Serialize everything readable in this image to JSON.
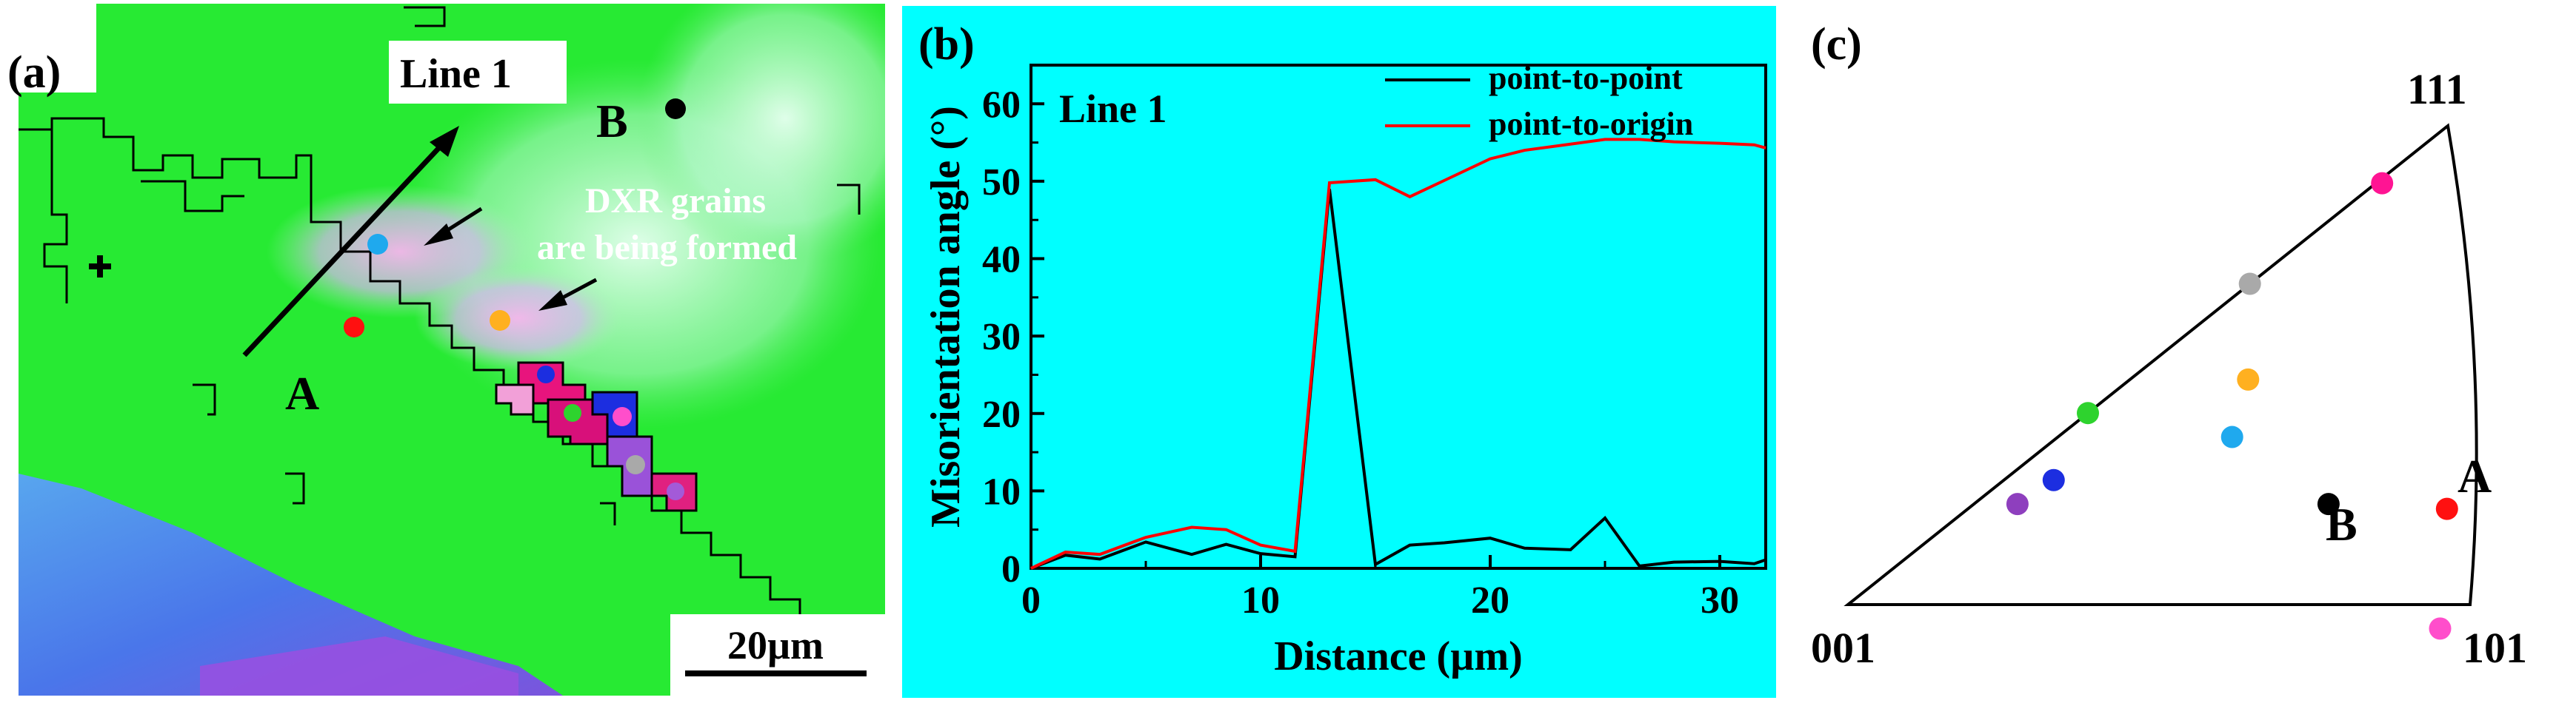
{
  "panels": {
    "a": {
      "tag": "(a)",
      "line_label": "Line 1",
      "point_a": "A",
      "point_b": "B",
      "annotation_line1": "DXR grains",
      "annotation_line2": "are being formed",
      "scale_bar": "20µm",
      "colors": {
        "matrix_green": "#27ea33",
        "blue_region": "#3d7cf0",
        "purple_region": "#8a5be0",
        "pink_band": "#f2a9e8",
        "grain_magenta": "#e8147d",
        "grain_blue": "#1c2ee0",
        "grain_violet": "#9a52d9"
      }
    },
    "b": {
      "tag": "(b)",
      "inset_label": "Line 1",
      "background": "#00ffff",
      "chart_data": {
        "type": "line",
        "xlabel": "Distance (µm)",
        "ylabel": "Misorientation angle (°)",
        "xlim": [
          0,
          32
        ],
        "ylim": [
          0,
          65
        ],
        "xticks": [
          "0",
          "10",
          "20",
          "30"
        ],
        "yticks": [
          "0",
          "10",
          "20",
          "30",
          "40",
          "50",
          "60"
        ],
        "legend": "top-right",
        "series": [
          {
            "name": "point-to-point",
            "color": "#000000",
            "x": [
              0,
              1.5,
              3,
              5,
              7,
              8.5,
              10,
              11.5,
              13,
              15,
              16.5,
              18,
              20,
              21.5,
              23.5,
              25,
              26.5,
              28,
              30,
              31.5,
              32
            ],
            "y": [
              0,
              1.7,
              1.2,
              3.4,
              1.8,
              3.1,
              1.9,
              1.5,
              49,
              0.5,
              3.0,
              3.3,
              3.9,
              2.6,
              2.4,
              6.5,
              0.3,
              0.8,
              0.9,
              0.6,
              1.1
            ]
          },
          {
            "name": "point-to-origin",
            "color": "#ff0000",
            "x": [
              0,
              1.5,
              3,
              5,
              7,
              8.5,
              10,
              11.5,
              13,
              15,
              16.5,
              18,
              20,
              21.5,
              23.5,
              25,
              26.5,
              28,
              30,
              31.5,
              32
            ],
            "y": [
              0,
              2.1,
              1.8,
              4.0,
              5.3,
              5.0,
              3.0,
              2.2,
              49.8,
              50.2,
              48.0,
              50.1,
              52.9,
              54.0,
              54.8,
              55.4,
              55.4,
              55.1,
              54.9,
              54.7,
              54.3
            ]
          }
        ]
      }
    },
    "c": {
      "tag": "(c)",
      "corner_001": "001",
      "corner_101": "101",
      "corner_111": "111",
      "point_a": "A",
      "point_b": "B",
      "pole_points": [
        {
          "color": "#ff1493",
          "u": 0.89,
          "v": 0.88
        },
        {
          "color": "#a9a9a9",
          "u": 0.67,
          "v": 0.67
        },
        {
          "color": "#ffb020",
          "u": 0.66,
          "v": 0.47
        },
        {
          "color": "#1fa9ee",
          "u": 0.63,
          "v": 0.35
        },
        {
          "color": "#2ed32e",
          "u": 0.4,
          "v": 0.4
        },
        {
          "color": "#1c2ee0",
          "u": 0.34,
          "v": 0.26
        },
        {
          "color": "#8e3fbe",
          "u": 0.28,
          "v": 0.21
        },
        {
          "color": "#000000",
          "u": 0.78,
          "v": 0.21
        },
        {
          "color": "#ff1010",
          "u": 0.97,
          "v": 0.2
        },
        {
          "color": "#ff4ecb",
          "u": 0.95,
          "v": -0.05
        }
      ]
    }
  }
}
